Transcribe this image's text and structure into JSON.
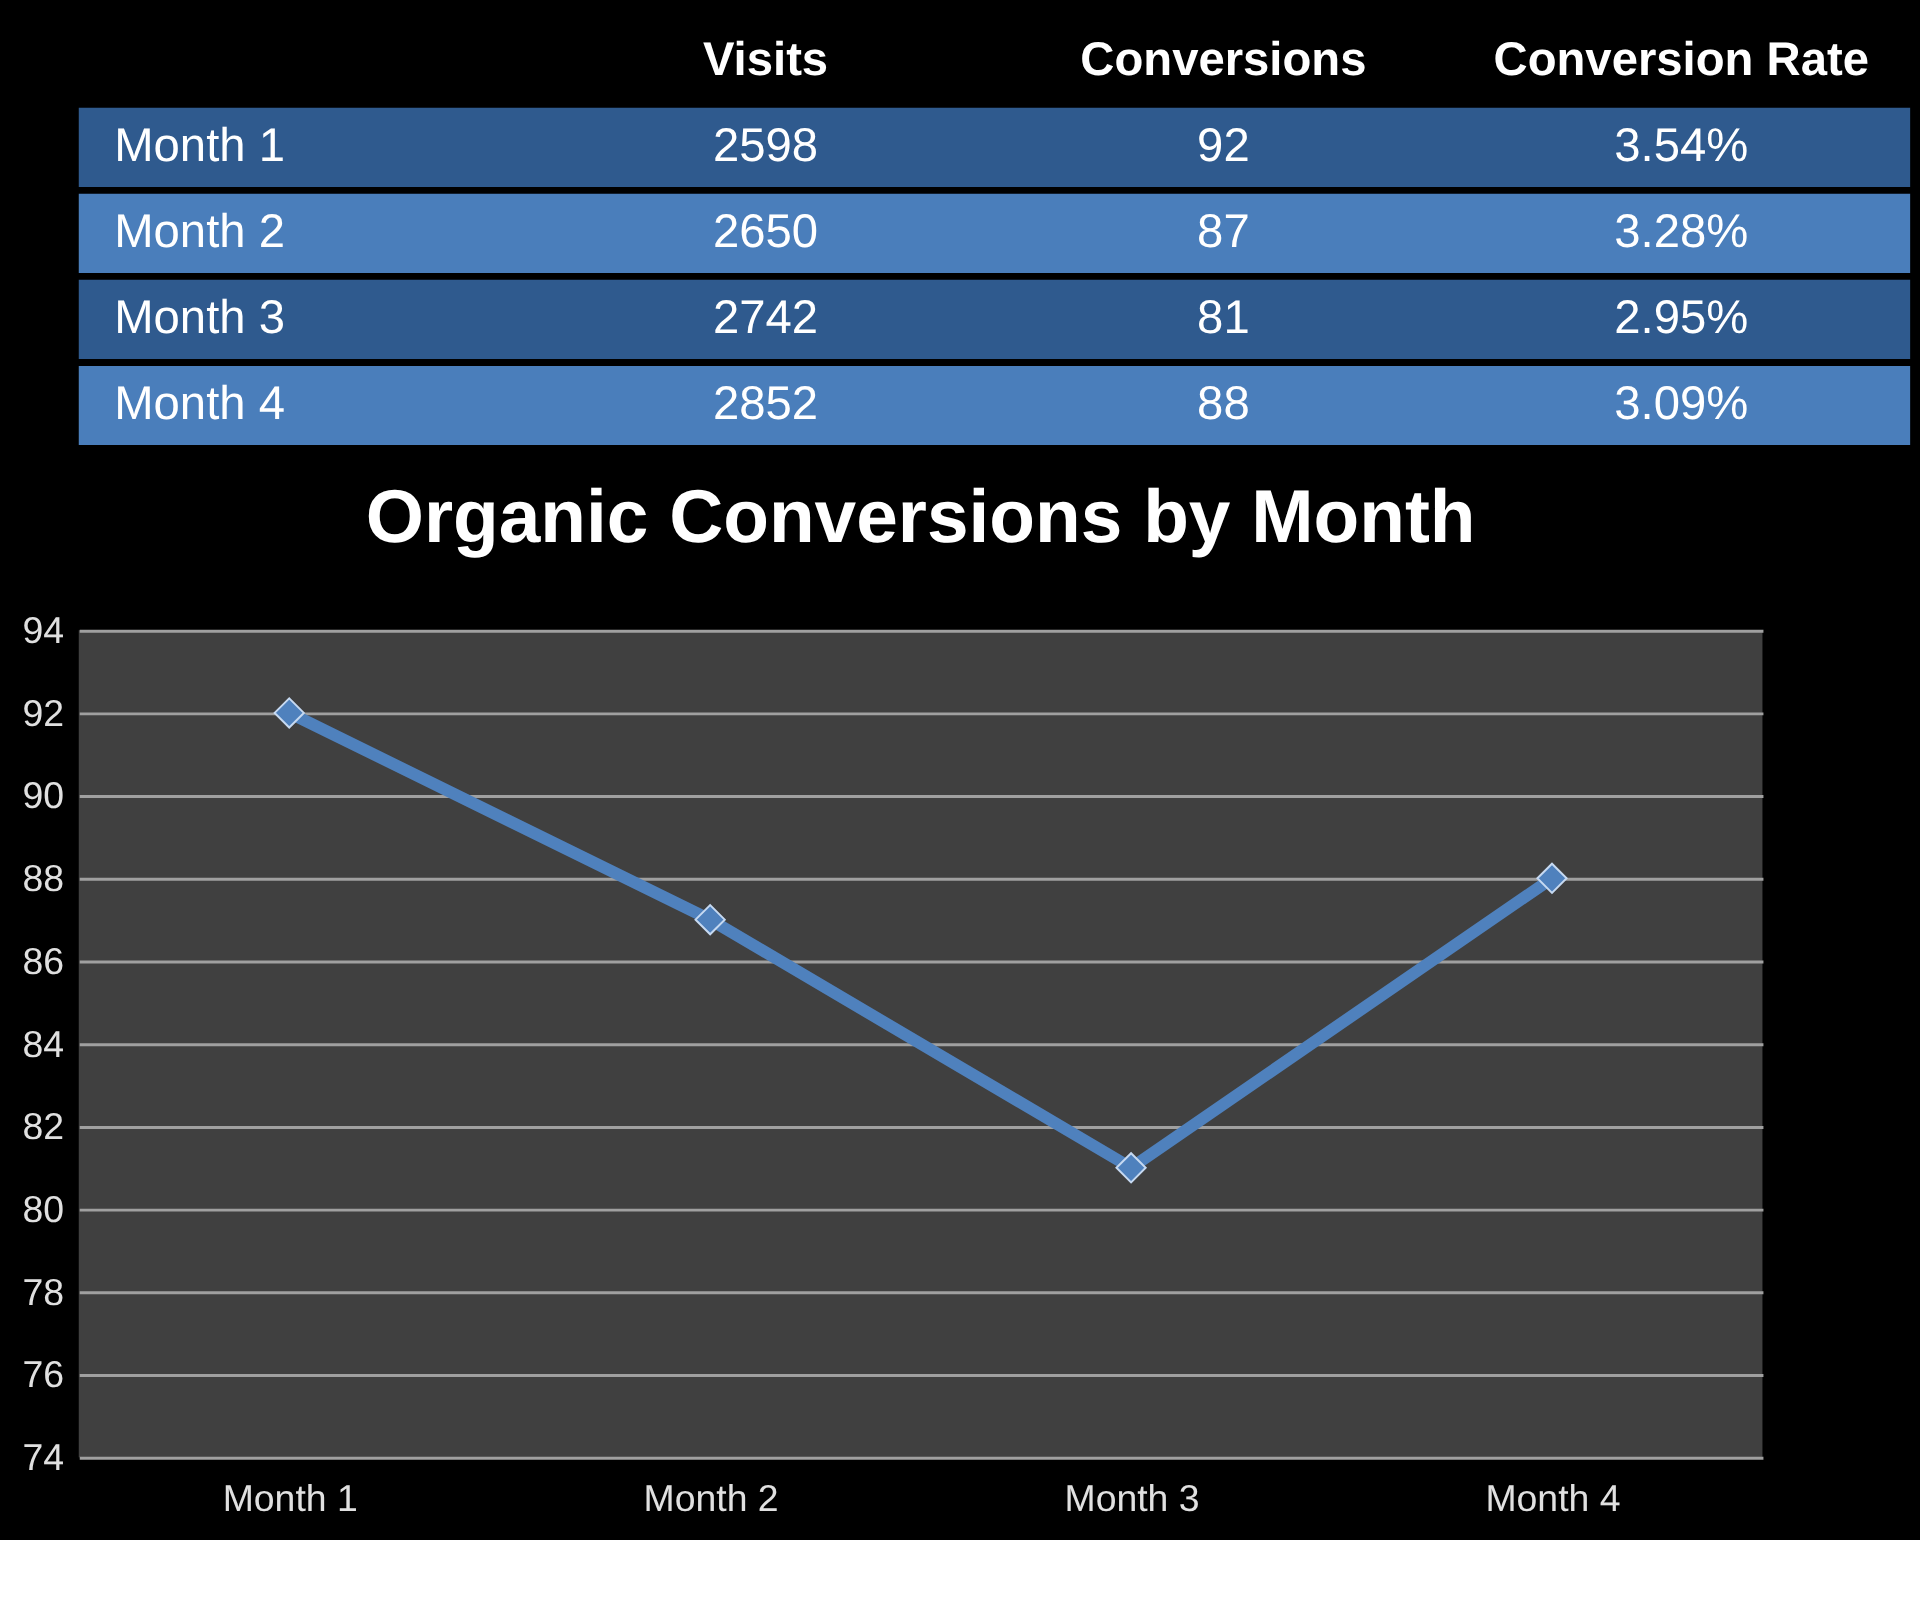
{
  "chart_data": [
    {
      "type": "other",
      "categories": [
        "Visits",
        "Conversions",
        "Conversion Rate"
      ],
      "y_categories": [
        "Month 1",
        "Month 2",
        "Month 3",
        "Month 4"
      ],
      "cell_labels": [
        [
          "2598",
          "92",
          "3.54%"
        ],
        [
          "2650",
          "87",
          "3.28%"
        ],
        [
          "2742",
          "81",
          "2.95%"
        ],
        [
          "2852",
          "88",
          "3.09%"
        ]
      ],
      "colors": [
        "#2f5a8e",
        "#4a7ebb",
        "#2f5a8e",
        "#4a7ebb"
      ]
    },
    {
      "type": "line",
      "title": "Organic Conversions by Month",
      "categories": [
        "Month 1",
        "Month 2",
        "Month 3",
        "Month 4"
      ],
      "series": [
        {
          "color": "#4f81bd",
          "values": [
            92,
            87,
            81,
            88
          ]
        }
      ],
      "ylim": [
        74,
        94
      ],
      "yticks": [
        74,
        76,
        78,
        80,
        82,
        84,
        86,
        88,
        90,
        92,
        94
      ],
      "grid": "y",
      "marker": "diamond"
    }
  ]
}
